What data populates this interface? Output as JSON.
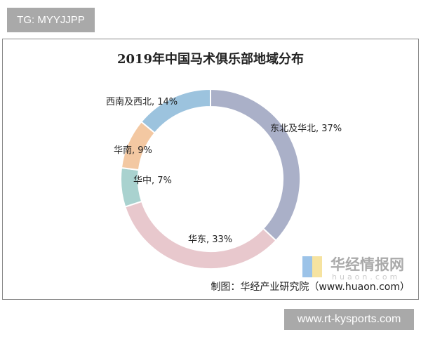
{
  "tag": "TG: MYYJJPP",
  "site": "www.rt-kysports.com",
  "credit": "制图：华经产业研究院（www.huaon.com）",
  "watermark": {
    "name": "华经情报网",
    "domain": "huaon.com"
  },
  "chart_data": {
    "type": "pie",
    "donut": true,
    "title": "2019年中国马术俱乐部地域分布",
    "categories": [
      "东北及华北",
      "华东",
      "华中",
      "华南",
      "西南及西北"
    ],
    "values": [
      37,
      33,
      7,
      9,
      14
    ],
    "labels": [
      "东北及华北, 37%",
      "华东, 33%",
      "华中, 7%",
      "华南, 9%",
      "西南及西北, 14%"
    ],
    "colors": [
      "#aab0c8",
      "#e8c8cd",
      "#a9d2cf",
      "#f3c8a2",
      "#9cc3de"
    ],
    "legend": "none"
  }
}
